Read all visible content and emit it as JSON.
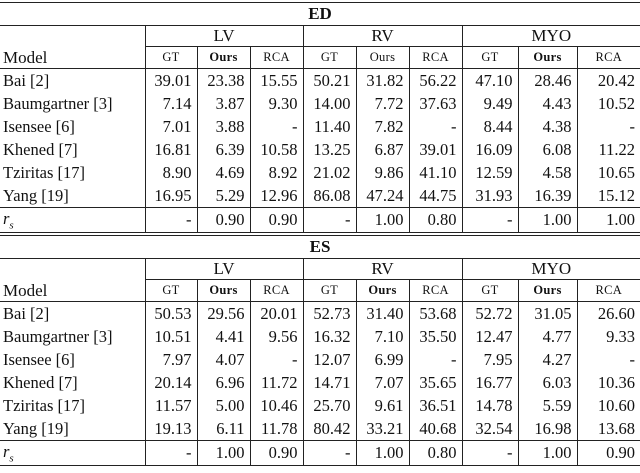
{
  "page": {
    "background": "#ffffff",
    "rule_color": "#222222",
    "text_color": "#111111"
  },
  "tables": [
    {
      "title": "ED",
      "model_header": "Model",
      "groups": [
        {
          "label": "LV",
          "ours_bold": true
        },
        {
          "label": "RV",
          "ours_bold": false
        },
        {
          "label": "MYO",
          "ours_bold": true
        }
      ],
      "subheaders": [
        "GT",
        "Ours",
        "RCA"
      ],
      "rows": [
        {
          "model": "Bai [2]",
          "values": [
            "39.01",
            "23.38",
            "15.55",
            "50.21",
            "31.82",
            "56.22",
            "47.10",
            "28.46",
            "20.42"
          ]
        },
        {
          "model": "Baumgartner [3]",
          "values": [
            "7.14",
            "3.87",
            "9.30",
            "14.00",
            "7.72",
            "37.63",
            "9.49",
            "4.43",
            "10.52"
          ]
        },
        {
          "model": "Isensee [6]",
          "values": [
            "7.01",
            "3.88",
            "-",
            "11.40",
            "7.82",
            "-",
            "8.44",
            "4.38",
            "-"
          ]
        },
        {
          "model": "Khened [7]",
          "values": [
            "16.81",
            "6.39",
            "10.58",
            "13.25",
            "6.87",
            "39.01",
            "16.09",
            "6.08",
            "11.22"
          ]
        },
        {
          "model": "Tziritas [17]",
          "values": [
            "8.90",
            "4.69",
            "8.92",
            "21.02",
            "9.86",
            "41.10",
            "12.59",
            "4.58",
            "10.65"
          ]
        },
        {
          "model": "Yang [19]",
          "values": [
            "16.95",
            "5.29",
            "12.96",
            "86.08",
            "47.24",
            "44.75",
            "31.93",
            "16.39",
            "15.12"
          ]
        }
      ],
      "rs_row": {
        "label_base": "r",
        "label_sub": "s",
        "values": [
          "-",
          "0.90",
          "0.90",
          "-",
          "1.00",
          "0.80",
          "-",
          "1.00",
          "1.00"
        ]
      }
    },
    {
      "title": "ES",
      "model_header": "Model",
      "groups": [
        {
          "label": "LV",
          "ours_bold": true
        },
        {
          "label": "RV",
          "ours_bold": true
        },
        {
          "label": "MYO",
          "ours_bold": true
        }
      ],
      "subheaders": [
        "GT",
        "Ours",
        "RCA"
      ],
      "rows": [
        {
          "model": "Bai [2]",
          "values": [
            "50.53",
            "29.56",
            "20.01",
            "52.73",
            "31.40",
            "53.68",
            "52.72",
            "31.05",
            "26.60"
          ]
        },
        {
          "model": "Baumgartner [3]",
          "values": [
            "10.51",
            "4.41",
            "9.56",
            "16.32",
            "7.10",
            "35.50",
            "12.47",
            "4.77",
            "9.33"
          ]
        },
        {
          "model": "Isensee [6]",
          "values": [
            "7.97",
            "4.07",
            "-",
            "12.07",
            "6.99",
            "-",
            "7.95",
            "4.27",
            "-"
          ]
        },
        {
          "model": "Khened [7]",
          "values": [
            "20.14",
            "6.96",
            "11.72",
            "14.71",
            "7.07",
            "35.65",
            "16.77",
            "6.03",
            "10.36"
          ]
        },
        {
          "model": "Tziritas [17]",
          "values": [
            "11.57",
            "5.00",
            "10.46",
            "25.70",
            "9.61",
            "36.51",
            "14.78",
            "5.59",
            "10.60"
          ]
        },
        {
          "model": "Yang [19]",
          "values": [
            "19.13",
            "6.11",
            "11.78",
            "80.42",
            "33.21",
            "40.68",
            "32.54",
            "16.98",
            "13.68"
          ]
        }
      ],
      "rs_row": {
        "label_base": "r",
        "label_sub": "s",
        "values": [
          "-",
          "1.00",
          "0.90",
          "-",
          "1.00",
          "0.80",
          "-",
          "1.00",
          "0.90"
        ]
      }
    }
  ]
}
